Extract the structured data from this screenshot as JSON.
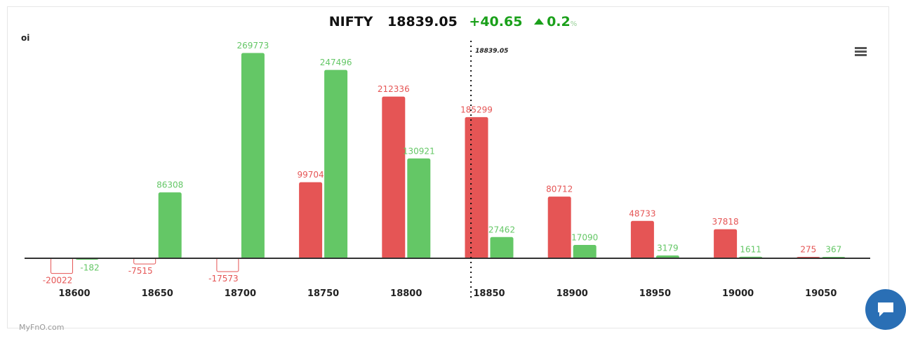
{
  "header": {
    "symbol": "NIFTY",
    "price": "18839.05",
    "change": "+40.65",
    "change_pct": "0.2",
    "pct_sign": "%",
    "direction": "up"
  },
  "brand": "MyFnO.com",
  "chart_data": {
    "type": "bar",
    "ylabel": "oi",
    "categories": [
      "18600",
      "18650",
      "18700",
      "18750",
      "18800",
      "18850",
      "18900",
      "18950",
      "19000",
      "19050"
    ],
    "series": [
      {
        "color": "#e55555",
        "values": [
          -20022,
          -7515,
          -17573,
          99704,
          212336,
          185299,
          80712,
          48733,
          37818,
          275
        ]
      },
      {
        "color": "#64c766",
        "values": [
          -182,
          86308,
          269773,
          247496,
          130921,
          27462,
          17090,
          3179,
          1611,
          367
        ]
      }
    ],
    "spot": {
      "value": 18839.05,
      "label": "18839.05"
    },
    "ylim": [
      -30000,
      270000
    ],
    "grid": false
  }
}
